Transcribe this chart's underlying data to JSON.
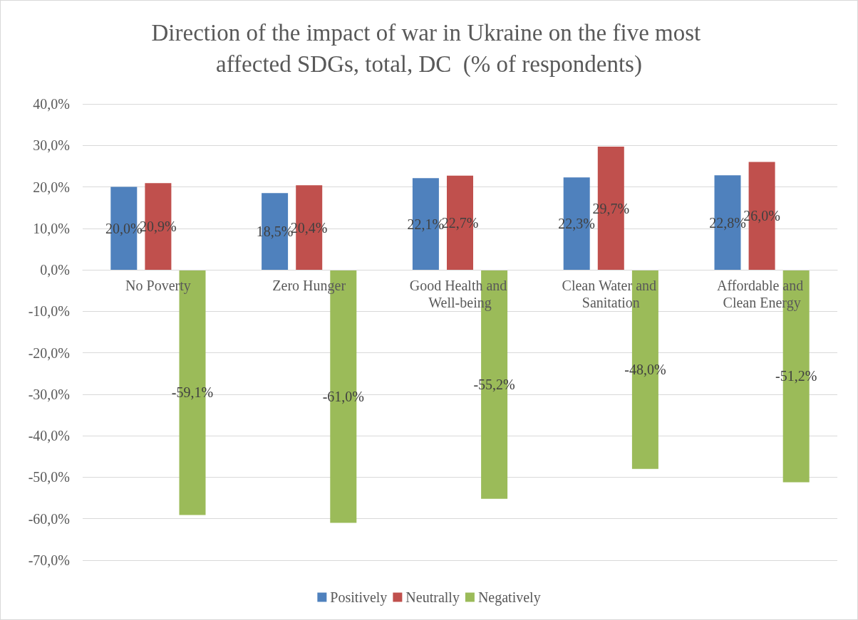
{
  "chart_data": {
    "type": "bar",
    "title": "Direction of the impact of war in Ukraine on the five most affected SDGs, total, DC  (% of respondents)",
    "categories": [
      "No Poverty",
      "Zero Hunger",
      "Good Health and Well-being",
      "Clean Water and Sanitation",
      "Affordable and Clean Energy"
    ],
    "series": [
      {
        "name": "Positively",
        "color": "#4f81bd",
        "values": [
          20.0,
          18.5,
          22.1,
          22.3,
          22.8
        ],
        "value_labels": [
          "20,0%",
          "18,5%",
          "22,1%",
          "22,3%",
          "22,8%"
        ]
      },
      {
        "name": "Neutrally",
        "color": "#c0504d",
        "values": [
          20.9,
          20.4,
          22.7,
          29.7,
          26.0
        ],
        "value_labels": [
          "20,9%",
          "20,4%",
          "22,7%",
          "29,7%",
          "26,0%"
        ]
      },
      {
        "name": "Negatively",
        "color": "#9bbb59",
        "values": [
          -59.1,
          -61.0,
          -55.2,
          -48.0,
          -51.2
        ],
        "value_labels": [
          "-59,1%",
          "-61,0%",
          "-55,2%",
          "-48,0%",
          "-51,2%"
        ]
      }
    ],
    "ylim": [
      -70,
      40
    ],
    "yticks": [
      {
        "value": -70,
        "label": "-70,0%"
      },
      {
        "value": -60,
        "label": "-60,0%"
      },
      {
        "value": -50,
        "label": "-50,0%"
      },
      {
        "value": -40,
        "label": "-40,0%"
      },
      {
        "value": -30,
        "label": "-30,0%"
      },
      {
        "value": -20,
        "label": "-20,0%"
      },
      {
        "value": -10,
        "label": "-10,0%"
      },
      {
        "value": 0,
        "label": "0,0%"
      },
      {
        "value": 10,
        "label": "10,0%"
      },
      {
        "value": 20,
        "label": "20,0%"
      },
      {
        "value": 30,
        "label": "30,0%"
      },
      {
        "value": 40,
        "label": "40,0%"
      }
    ],
    "grid": "y",
    "legend": "bottom"
  }
}
